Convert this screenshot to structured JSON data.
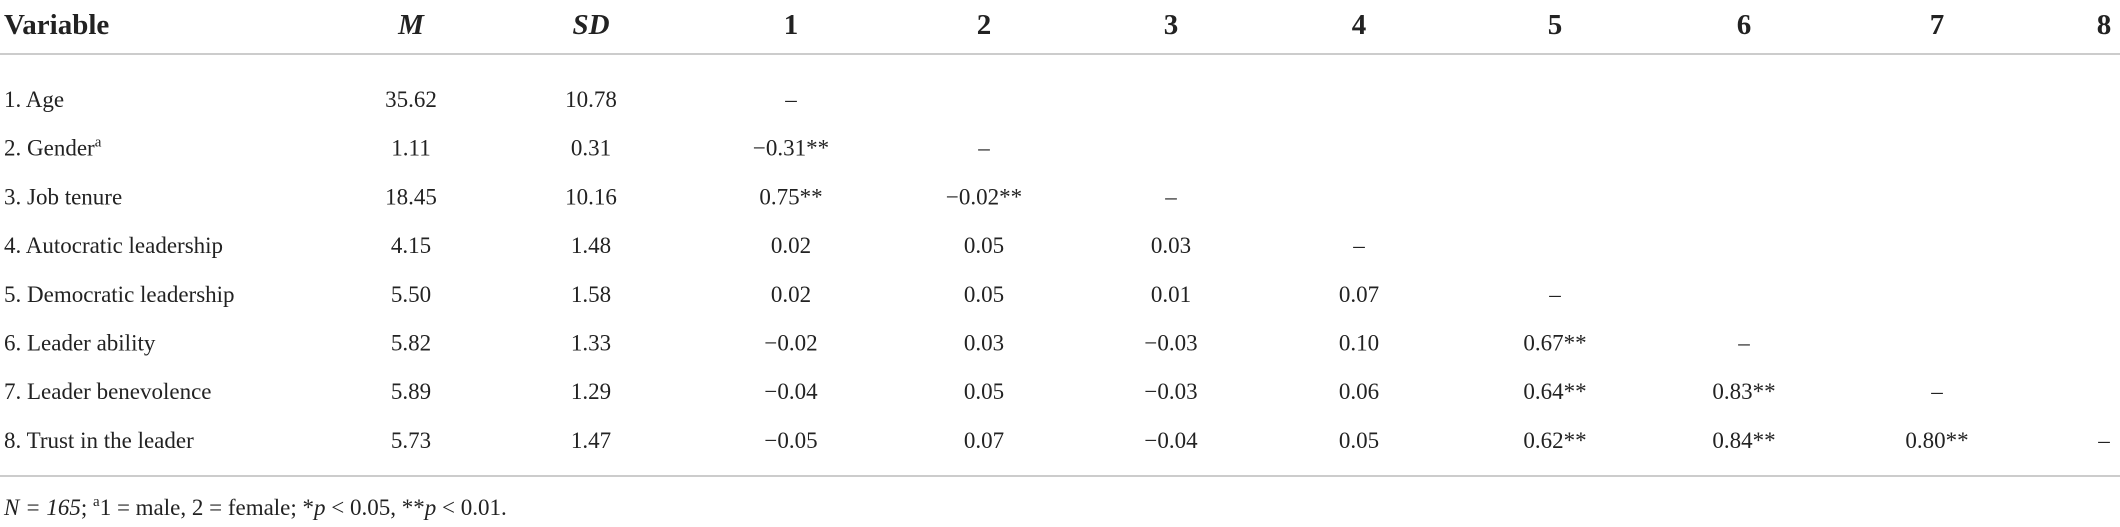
{
  "table": {
    "header": [
      "Variable",
      "M",
      "SD",
      "1",
      "2",
      "3",
      "4",
      "5",
      "6",
      "7",
      "8"
    ],
    "rows": [
      {
        "variable": "1. Age",
        "cells": [
          "35.62",
          "10.78",
          "–",
          null,
          null,
          null,
          null,
          null,
          null,
          null
        ]
      },
      {
        "variable": "2. Gender",
        "sup": "a",
        "cells": [
          "1.11",
          "0.31",
          "−0.31**",
          "–",
          null,
          null,
          null,
          null,
          null,
          null
        ]
      },
      {
        "variable": "3. Job tenure",
        "cells": [
          "18.45",
          "10.16",
          "0.75**",
          "−0.02**",
          "–",
          null,
          null,
          null,
          null,
          null
        ]
      },
      {
        "variable": "4. Autocratic leadership",
        "cells": [
          "4.15",
          "1.48",
          "0.02",
          "0.05",
          "0.03",
          "–",
          null,
          null,
          null,
          null
        ]
      },
      {
        "variable": "5. Democratic leadership",
        "cells": [
          "5.50",
          "1.58",
          "0.02",
          "0.05",
          "0.01",
          "0.07",
          "–",
          null,
          null,
          null
        ]
      },
      {
        "variable": "6. Leader ability",
        "cells": [
          "5.82",
          "1.33",
          "−0.02",
          "0.03",
          "−0.03",
          "0.10",
          "0.67**",
          "–",
          null,
          null
        ]
      },
      {
        "variable": "7. Leader benevolence",
        "cells": [
          "5.89",
          "1.29",
          "−0.04",
          "0.05",
          "−0.03",
          "0.06",
          "0.64**",
          "0.83**",
          "–",
          null
        ]
      },
      {
        "variable": "8. Trust in the leader",
        "cells": [
          "5.73",
          "1.47",
          "−0.05",
          "0.07",
          "−0.04",
          "0.05",
          "0.62**",
          "0.84**",
          "0.80**",
          "–"
        ]
      }
    ],
    "footnote": [
      {
        "text": "N = 165",
        "italic": true
      },
      {
        "text": "; "
      },
      {
        "text": "a",
        "sup": true
      },
      {
        "text": "1 = male, 2 = female; *"
      },
      {
        "text": "p",
        "italic": true
      },
      {
        "text": " < 0.05, **"
      },
      {
        "text": "p",
        "italic": true
      },
      {
        "text": " < 0.01."
      }
    ]
  }
}
